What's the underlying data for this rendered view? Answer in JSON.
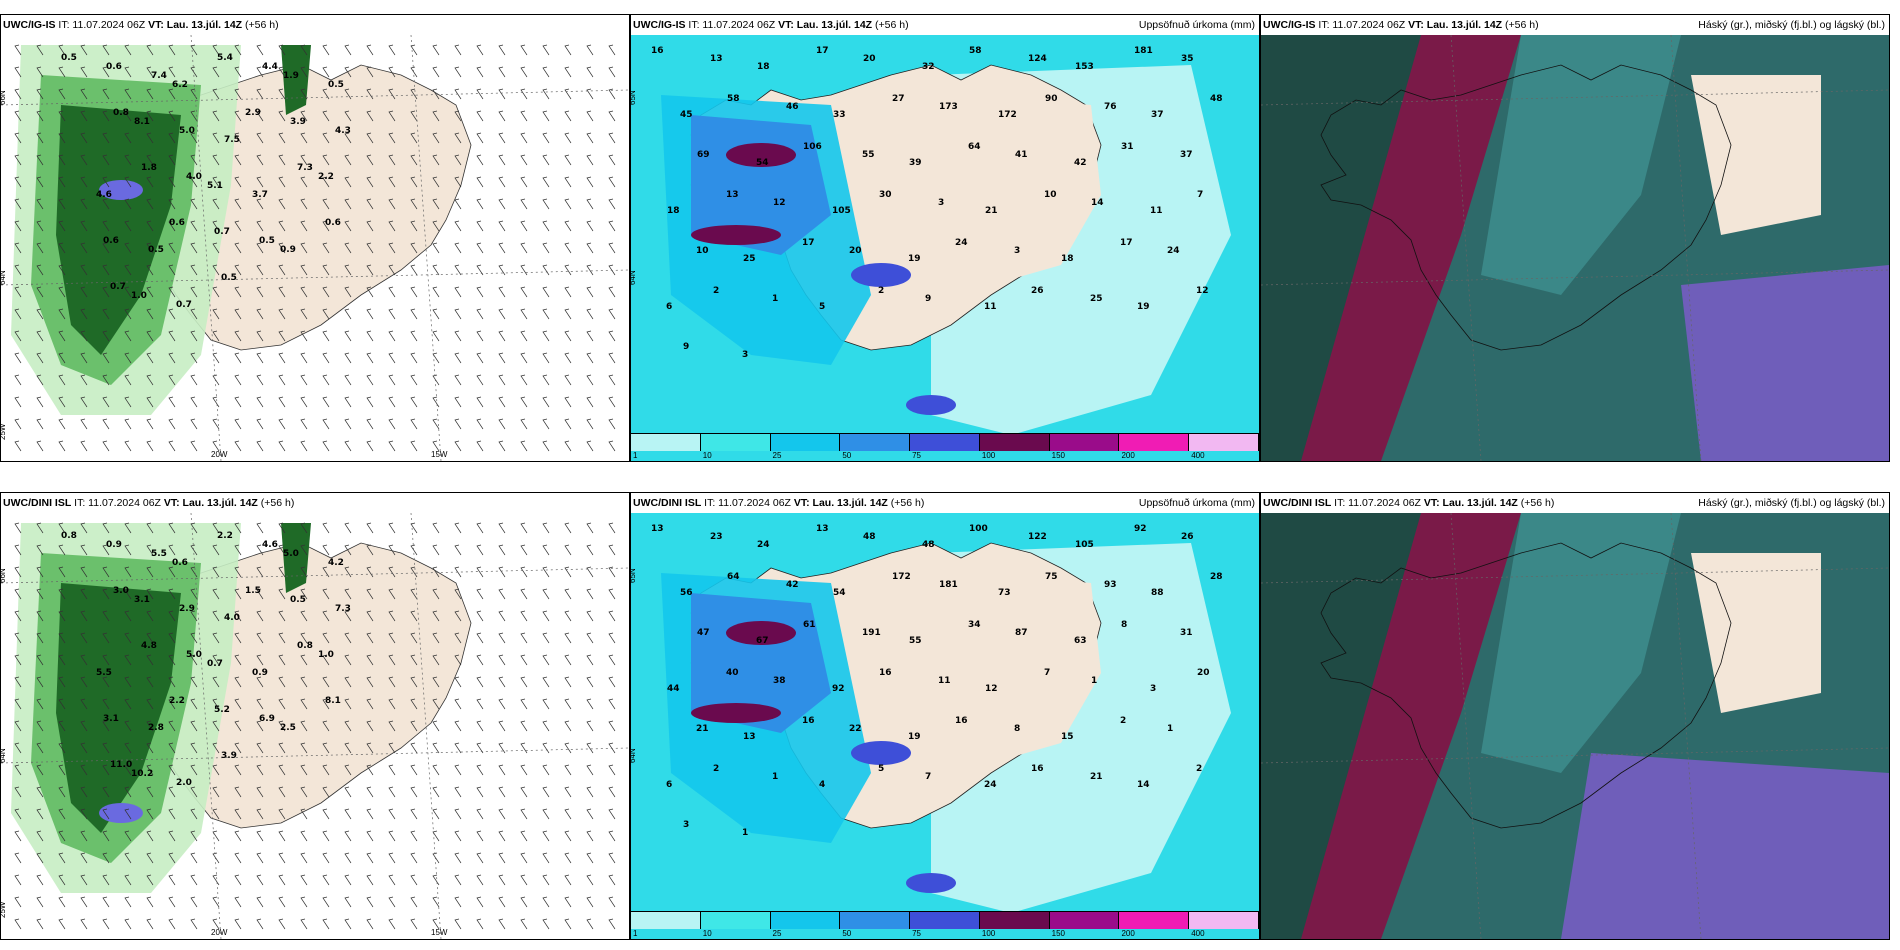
{
  "panels": [
    {
      "model": "UWC/IG-IS",
      "it": "IT: 11.07.2024 06Z",
      "vt": "VT: Lau. 13.júl. 14Z",
      "lead": "(+56 h)",
      "right": "",
      "lon_labels": [
        "20W",
        "15W"
      ],
      "lat_labels": [
        "66N",
        "64N",
        "25W"
      ],
      "values": [
        "0.5",
        "0.6",
        "7.4",
        "6.2",
        "5.4",
        "4.4",
        "1.9",
        "0.5",
        "0.8",
        "8.1",
        "5.0",
        "7.5",
        "2.9",
        "3.9",
        "4.3",
        "4.6",
        "1.8",
        "4.0",
        "5.1",
        "3.7",
        "7.3",
        "2.2",
        "0.6",
        "0.5",
        "0.6",
        "0.7",
        "0.5",
        "0.9",
        "0.6",
        "0.7",
        "1.0",
        "0.7",
        "0.5"
      ]
    },
    {
      "model": "UWC/IG-IS",
      "it": "IT: 11.07.2024 06Z",
      "vt": "VT: Lau. 13.júl. 14Z",
      "lead": "(+56 h)",
      "right": "Uppsöfnuð úrkoma (mm)",
      "lon_labels": [],
      "lat_labels": [
        "65N",
        "64N"
      ],
      "values": [
        "16",
        "13",
        "18",
        "17",
        "20",
        "32",
        "58",
        "124",
        "153",
        "181",
        "35",
        "45",
        "58",
        "46",
        "33",
        "27",
        "173",
        "172",
        "90",
        "76",
        "37",
        "48",
        "69",
        "54",
        "106",
        "55",
        "39",
        "64",
        "41",
        "42",
        "31",
        "37",
        "18",
        "13",
        "12",
        "105",
        "30",
        "3",
        "21",
        "10",
        "14",
        "11",
        "7",
        "10",
        "25",
        "17",
        "20",
        "19",
        "24",
        "3",
        "18",
        "17",
        "24",
        "6",
        "2",
        "1",
        "5",
        "2",
        "9",
        "11",
        "26",
        "25",
        "19",
        "12",
        "9",
        "3"
      ],
      "colorbar": [
        "1",
        "10",
        "25",
        "50",
        "75",
        "100",
        "150",
        "200",
        "400"
      ]
    },
    {
      "model": "UWC/IG-IS",
      "it": "IT: 11.07.2024 06Z",
      "vt": "VT: Lau. 13.júl. 14Z",
      "lead": "(+56 h)",
      "right": "Háský (gr.), miðský (fj.bl.) og lágský (bl.)"
    },
    {
      "model": "UWC/DINI ISL",
      "it": "IT: 11.07.2024 06Z",
      "vt": "VT: Lau. 13.júl. 14Z",
      "lead": "(+56 h)",
      "right": "",
      "lon_labels": [
        "20W",
        "15W"
      ],
      "lat_labels": [
        "66N",
        "64N",
        "25W"
      ],
      "values": [
        "0.8",
        "0.9",
        "5.5",
        "0.6",
        "2.2",
        "4.6",
        "5.0",
        "4.2",
        "3.0",
        "3.1",
        "2.9",
        "4.0",
        "1.5",
        "0.5",
        "7.3",
        "5.5",
        "4.8",
        "5.0",
        "0.7",
        "0.9",
        "0.8",
        "1.0",
        "3.1",
        "2.8",
        "2.2",
        "5.2",
        "6.9",
        "2.5",
        "8.1",
        "11.0",
        "10.2",
        "2.0",
        "3.9"
      ]
    },
    {
      "model": "UWC/DINI ISL",
      "it": "IT: 11.07.2024 06Z",
      "vt": "VT: Lau. 13.júl. 14Z",
      "lead": "(+56 h)",
      "right": "Uppsöfnuð úrkoma (mm)",
      "lon_labels": [],
      "lat_labels": [
        "65N",
        "64N"
      ],
      "values": [
        "13",
        "23",
        "24",
        "13",
        "48",
        "48",
        "100",
        "122",
        "105",
        "92",
        "26",
        "56",
        "64",
        "42",
        "54",
        "172",
        "181",
        "73",
        "75",
        "93",
        "88",
        "28",
        "47",
        "67",
        "61",
        "191",
        "55",
        "34",
        "87",
        "63",
        "8",
        "31",
        "44",
        "40",
        "38",
        "92",
        "16",
        "11",
        "12",
        "7",
        "1",
        "3",
        "20",
        "21",
        "13",
        "16",
        "22",
        "19",
        "16",
        "8",
        "15",
        "2",
        "1",
        "6",
        "2",
        "1",
        "4",
        "5",
        "7",
        "24",
        "16",
        "21",
        "14",
        "2",
        "3",
        "1"
      ],
      "colorbar": [
        "1",
        "10",
        "25",
        "50",
        "75",
        "100",
        "150",
        "200",
        "400"
      ]
    },
    {
      "model": "UWC/DINI ISL",
      "it": "IT: 11.07.2024 06Z",
      "vt": "VT: Lau. 13.júl. 14Z",
      "lead": "(+56 h)",
      "right": "Háský (gr.), miðský (fj.bl.) og lágský (bl.)"
    }
  ],
  "colors": {
    "land": "#f3e6d8",
    "rain_light": "#c7edc3",
    "rain_mid": "#6bc06c",
    "rain_dark": "#1f6a27",
    "rain_max": "#6a6ae0",
    "cb": [
      "#b8f4f4",
      "#3fe7e7",
      "#14c6ec",
      "#2f8fe6",
      "#3e4fd8",
      "#6a0a4e",
      "#9a0c8a",
      "#f01cb4",
      "#f2b8f2"
    ],
    "high": "#7a1a48",
    "mid": "#2e6a6a",
    "low": "#3e9090",
    "clear": "#e8f5ee"
  }
}
